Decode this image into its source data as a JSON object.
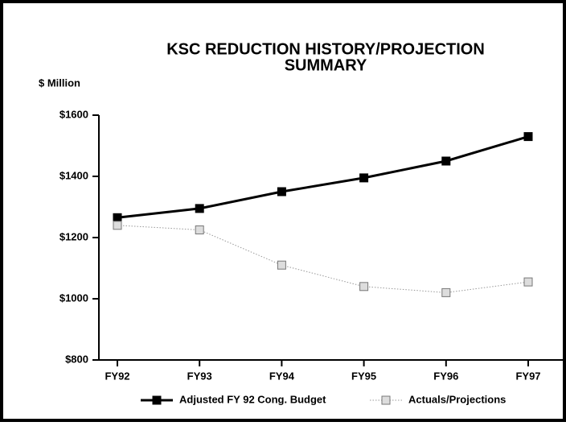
{
  "chart_data": {
    "type": "line",
    "title": [
      "KSC REDUCTION HISTORY/PROJECTION",
      "SUMMARY"
    ],
    "y_label": "$ Million",
    "categories": [
      "FY92",
      "FY93",
      "FY94",
      "FY95",
      "FY96",
      "FY97"
    ],
    "series": [
      {
        "name": "Adjusted FY 92 Cong. Budget",
        "color": "#000000",
        "values": [
          1265,
          1295,
          1350,
          1395,
          1450,
          1530
        ]
      },
      {
        "name": "Actuals/Projections",
        "color": "#999999",
        "values": [
          1240,
          1225,
          1110,
          1040,
          1020,
          1055
        ]
      }
    ],
    "ylim": [
      800,
      1600
    ],
    "yticks": [
      {
        "value": 800,
        "label": "$800"
      },
      {
        "value": 1000,
        "label": "$1000"
      },
      {
        "value": 1200,
        "label": "$1200"
      },
      {
        "value": 1400,
        "label": "$1400"
      },
      {
        "value": 1600,
        "label": "$1600"
      }
    ],
    "grid": false
  }
}
